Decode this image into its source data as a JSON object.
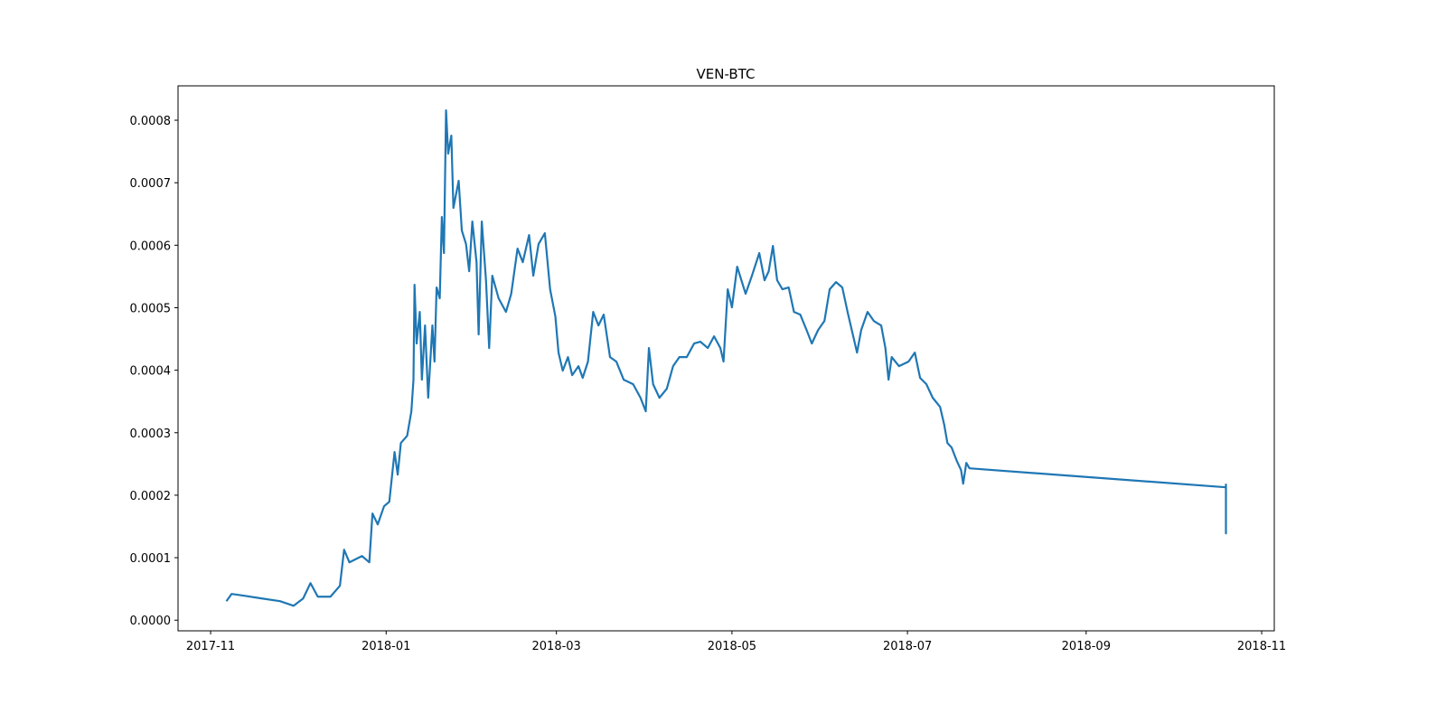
{
  "chart_data": {
    "type": "line",
    "title": "VEN-BTC",
    "x": [
      2017.848,
      2017.853,
      2017.865,
      2017.882,
      2017.899,
      2017.912,
      2017.921,
      2017.928,
      2017.935,
      2017.947,
      2017.956,
      2017.96,
      2017.965,
      2017.977,
      2017.984,
      2017.987,
      2017.992,
      2017.998,
      2018.003,
      2018.008,
      2018.011,
      2018.014,
      2018.02,
      2018.024,
      2018.026,
      2018.027,
      2018.029,
      2018.032,
      2018.034,
      2018.037,
      2018.04,
      2018.044,
      2018.046,
      2018.048,
      2018.051,
      2018.053,
      2018.055,
      2018.057,
      2018.059,
      2018.062,
      2018.064,
      2018.069,
      2018.072,
      2018.076,
      2018.079,
      2018.082,
      2018.086,
      2018.088,
      2018.091,
      2018.095,
      2018.098,
      2018.101,
      2018.107,
      2018.114,
      2018.119,
      2018.125,
      2018.13,
      2018.136,
      2018.14,
      2018.145,
      2018.151,
      2018.156,
      2018.161,
      2018.164,
      2018.168,
      2018.173,
      2018.177,
      2018.183,
      2018.187,
      2018.192,
      2018.197,
      2018.202,
      2018.207,
      2018.213,
      2018.219,
      2018.226,
      2018.235,
      2018.242,
      2018.247,
      2018.25,
      2018.254,
      2018.26,
      2018.267,
      2018.273,
      2018.279,
      2018.286,
      2018.293,
      2018.299,
      2018.306,
      2018.312,
      2018.318,
      2018.321,
      2018.325,
      2018.329,
      2018.334,
      2018.338,
      2018.342,
      2018.348,
      2018.355,
      2018.36,
      2018.364,
      2018.368,
      2018.372,
      2018.377,
      2018.383,
      2018.388,
      2018.394,
      2018.4,
      2018.405,
      2018.411,
      2018.417,
      2018.422,
      2018.428,
      2018.434,
      2018.439,
      2018.444,
      2018.448,
      2018.452,
      2018.458,
      2018.464,
      2018.471,
      2018.475,
      2018.478,
      2018.481,
      2018.488,
      2018.497,
      2018.503,
      2018.508,
      2018.514,
      2018.52,
      2018.527,
      2018.531,
      2018.534,
      2018.538,
      2018.543,
      2018.547,
      2018.549,
      2018.552,
      2018.555,
      2018.799,
      2018.799,
      2018.799
    ],
    "series": [
      {
        "color": "#1f77b4",
        "values": [
          3.04e-05,
          4.2e-05,
          3.91e-05,
          3.47e-05,
          3.04e-05,
          2.31e-05,
          3.47e-05,
          5.93e-05,
          3.76e-05,
          3.76e-05,
          5.5e-05,
          0.0001128,
          9.26e-05,
          0.0001027,
          9.26e-05,
          0.0001707,
          0.0001533,
          0.0001823,
          0.0001895,
          0.0002691,
          0.0002329,
          0.0002835,
          0.0002951,
          0.0003342,
          0.0003848,
          0.0005367,
          0.0004427,
          0.0004933,
          0.0003848,
          0.0004716,
          0.0003559,
          0.0004716,
          0.0004138,
          0.0005324,
          0.000515,
          0.0006452,
          0.0005874,
          0.0008159,
          0.0007465,
          0.0007754,
          0.0006597,
          0.0007031,
          0.0006235,
          0.0006018,
          0.0005584,
          0.000638,
          0.0005729,
          0.0004572,
          0.000638,
          0.0005439,
          0.0004355,
          0.0005512,
          0.000515,
          0.0004933,
          0.0005223,
          0.0005946,
          0.0005729,
          0.0006163,
          0.0005512,
          0.0006018,
          0.0006192,
          0.0005295,
          0.0004861,
          0.0004282,
          0.0003993,
          0.000421,
          0.0003921,
          0.0004065,
          0.0003877,
          0.0004138,
          0.0004933,
          0.0004716,
          0.000489,
          0.000421,
          0.0004138,
          0.0003848,
          0.0003776,
          0.0003559,
          0.0003342,
          0.0004355,
          0.0003776,
          0.0003559,
          0.0003703,
          0.0004065,
          0.000421,
          0.000421,
          0.0004427,
          0.0004456,
          0.0004355,
          0.0004543,
          0.0004355,
          0.0004138,
          0.0005295,
          0.0005006,
          0.0005657,
          0.0005439,
          0.0005223,
          0.0005512,
          0.0005874,
          0.0005439,
          0.0005584,
          0.0005989,
          0.0005439,
          0.0005295,
          0.0005324,
          0.0004933,
          0.000489,
          0.0004644,
          0.0004427,
          0.0004644,
          0.0004788,
          0.0005295,
          0.000541,
          0.0005324,
          0.0004933,
          0.0004572,
          0.0004282,
          0.0004644,
          0.0004933,
          0.0004788,
          0.0004716,
          0.0004355,
          0.0003848,
          0.000421,
          0.0004065,
          0.0004138,
          0.0004282,
          0.0003877,
          0.0003776,
          0.0003559,
          0.0003414,
          0.0003125,
          0.0002835,
          0.0002763,
          0.0002546,
          0.0002401,
          0.0002184,
          0.0002517,
          0.000243,
          0.0002127,
          0.0001389,
          0.0002184
        ]
      }
    ],
    "xlim": [
      2017.802,
      2018.845
    ],
    "xticks": [
      {
        "value": 2017.833,
        "label": "2017-11"
      },
      {
        "value": 2018,
        "label": "2018-01"
      },
      {
        "value": 2018.162,
        "label": "2018-03"
      },
      {
        "value": 2018.329,
        "label": "2018-05"
      },
      {
        "value": 2018.496,
        "label": "2018-07"
      },
      {
        "value": 2018.666,
        "label": "2018-09"
      },
      {
        "value": 2018.833,
        "label": "2018-11"
      }
    ],
    "ylim": [
      -1.7e-05,
      0.000855
    ],
    "yticks": [
      {
        "value": 0,
        "label": "0.0000"
      },
      0.0001,
      0.0002,
      0.0003,
      0.0004,
      0.0005,
      0.0006,
      0.0007,
      0.0008
    ],
    "grid": false
  }
}
